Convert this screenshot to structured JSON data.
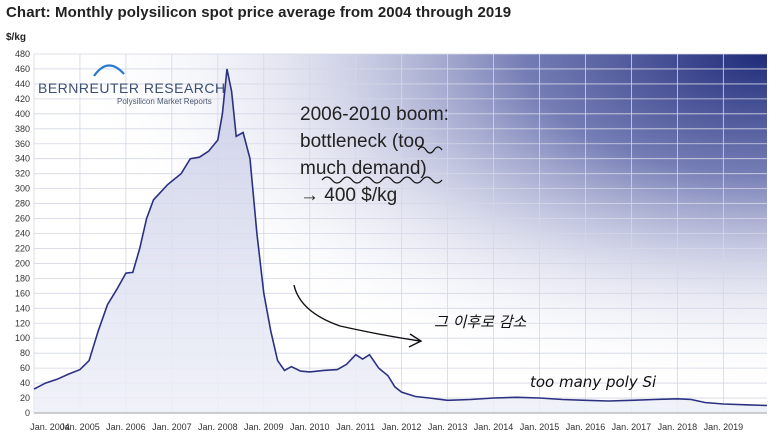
{
  "chart_data": {
    "type": "area",
    "title": "Chart: Monthly polysilicon spot price average from 2004 through 2019",
    "ylabel": "$/kg",
    "ylim": [
      0,
      480
    ],
    "yticks": [
      0,
      20,
      40,
      60,
      80,
      100,
      120,
      140,
      160,
      180,
      200,
      220,
      240,
      260,
      280,
      300,
      320,
      340,
      360,
      380,
      400,
      420,
      440,
      460,
      480
    ],
    "x_range": [
      2004.0,
      2019.95
    ],
    "xtick_labels": [
      "Jan. 2004",
      "Jan. 2005",
      "Jan. 2006",
      "Jan. 2007",
      "Jan. 2008",
      "Jan. 2009",
      "Jan. 2010",
      "Jan. 2011",
      "Jan. 2012",
      "Jan. 2013",
      "Jan. 2014",
      "Jan. 2015",
      "Jan. 2016",
      "Jan. 2017",
      "Jan. 2018",
      "Jan. 2019"
    ],
    "grid": true,
    "series": [
      {
        "x": [
          2004.0,
          2004.25,
          2004.5,
          2004.75,
          2005.0,
          2005.2,
          2005.4,
          2005.6,
          2005.8,
          2006.0,
          2006.15,
          2006.3,
          2006.45,
          2006.6,
          2006.75,
          2006.9,
          2007.0,
          2007.2,
          2007.4,
          2007.6,
          2007.8,
          2008.0,
          2008.1,
          2008.2,
          2008.3,
          2008.4,
          2008.55,
          2008.7,
          2008.85,
          2009.0,
          2009.15,
          2009.3,
          2009.45,
          2009.6,
          2009.8,
          2010.0,
          2010.3,
          2010.6,
          2010.8,
          2011.0,
          2011.15,
          2011.3,
          2011.5,
          2011.7,
          2011.85,
          2012.0,
          2012.3,
          2012.6,
          2013.0,
          2013.5,
          2014.0,
          2014.5,
          2015.0,
          2015.5,
          2016.0,
          2016.5,
          2017.0,
          2017.5,
          2018.0,
          2018.3,
          2018.6,
          2019.0,
          2019.5,
          2019.95
        ],
        "values": [
          32,
          40,
          45,
          52,
          58,
          70,
          110,
          145,
          165,
          187,
          188,
          220,
          260,
          285,
          295,
          305,
          310,
          320,
          340,
          342,
          350,
          365,
          400,
          460,
          430,
          370,
          375,
          340,
          240,
          160,
          110,
          70,
          57,
          62,
          56,
          55,
          57,
          58,
          65,
          78,
          72,
          78,
          60,
          50,
          35,
          28,
          22,
          20,
          17,
          18,
          20,
          21,
          20,
          18,
          17,
          16,
          17,
          18,
          19,
          18,
          14,
          12,
          11,
          10
        ]
      }
    ]
  },
  "logo": {
    "brand": "BERNREUTER RESEARCH",
    "tagline": "Polysilicon Market Reports"
  },
  "annotations": {
    "boom_text": [
      "2006-2010 boom:",
      "bottleneck (too",
      "much demand)",
      "→ 400 $/kg"
    ],
    "handwritten_korean": "그 이후로 감소",
    "handwritten_english": "too many poly Si"
  },
  "colors": {
    "line": "#2b3180",
    "fill_top": "#c8cce6",
    "fill_bottom": "#eef0f8",
    "bg_gradient_dark": "#1e2a78",
    "annotation_ink": "#111111"
  }
}
